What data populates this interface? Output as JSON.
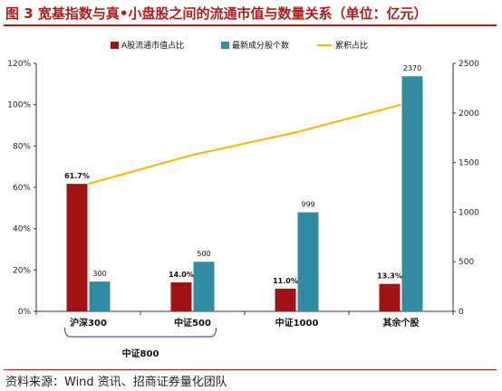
{
  "header": {
    "title": "图 3  宽基指数与真•小盘股之间的流通市值与数量关系（单位：亿元）"
  },
  "footer": {
    "source": "资料来源：Wind 资讯、招商证券量化团队"
  },
  "colors": {
    "title": "#b01c1c",
    "share": "#a31212",
    "count": "#2f8ca3",
    "cum": "#f5b800"
  },
  "chart_data": {
    "type": "bar",
    "categories": [
      "沪深300",
      "中证500",
      "中证1000",
      "其余个股"
    ],
    "group_label": "中证800",
    "group_span": [
      "沪深300",
      "中证500"
    ],
    "series": [
      {
        "name": "A股流通市值占比",
        "type": "bar",
        "axis": "left",
        "values": [
          61.7,
          14.0,
          11.0,
          13.3
        ],
        "labels": [
          "61.7%",
          "14.0%",
          "11.0%",
          "13.3%"
        ]
      },
      {
        "name": "最新成分股个数",
        "type": "bar",
        "axis": "right",
        "values": [
          300,
          500,
          999,
          2370
        ],
        "labels": [
          "300",
          "500",
          "999",
          "2370"
        ]
      },
      {
        "name": "累积占比",
        "type": "line",
        "axis": "left",
        "values": [
          61.7,
          75.7,
          86.7,
          100.0
        ]
      }
    ],
    "y_left": {
      "min": 0,
      "max": 120,
      "step": 20,
      "ticks": [
        "0%",
        "20%",
        "40%",
        "60%",
        "80%",
        "100%",
        "120%"
      ]
    },
    "y_right": {
      "min": 0,
      "max": 2500,
      "step": 500,
      "ticks": [
        "0",
        "500",
        "1000",
        "1500",
        "2000",
        "2500"
      ]
    },
    "grid": false,
    "legend_position": "top"
  }
}
